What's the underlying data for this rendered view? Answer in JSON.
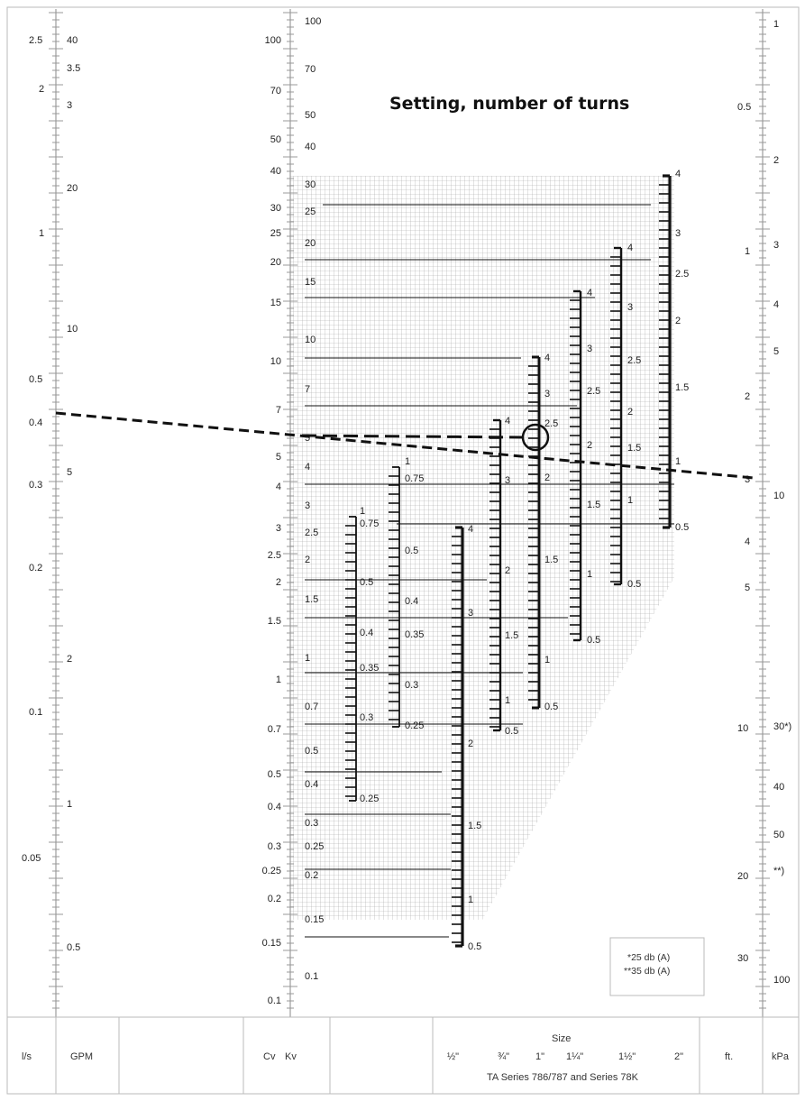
{
  "title": "Setting, number of turns",
  "scales": {
    "ls": [
      "2.5",
      "2",
      "1",
      "0.5",
      "0.4",
      "0.3",
      "0.2",
      "0.1",
      "0.05"
    ],
    "gpm": [
      "40",
      "3.5",
      "3",
      "20",
      "10",
      "5",
      "2",
      "1",
      "0.5"
    ],
    "cv": [
      "100",
      "70",
      "50",
      "40",
      "30",
      "25",
      "20",
      "15",
      "10",
      "7",
      "5",
      "4",
      "3",
      "2.5",
      "2",
      "1.5",
      "1",
      "0.7",
      "0.5",
      "0.4",
      "0.3",
      "0.25",
      "0.2",
      "0.15",
      "0.1"
    ],
    "kv": [
      "100",
      "70",
      "50",
      "40",
      "30",
      "25",
      "20",
      "15",
      "10",
      "7",
      "5",
      "4",
      "3",
      "2.5",
      "2",
      "1.5",
      "1",
      "0.7",
      "0.5",
      "0.4",
      "0.3",
      "0.25",
      "0.2",
      "0.15",
      "0.1"
    ],
    "ft": [
      "0.5",
      "1",
      "2",
      "3",
      "4",
      "5",
      "10",
      "20",
      "30"
    ],
    "kpa": [
      "1",
      "2",
      "3",
      "4",
      "5",
      "10",
      "30*)",
      "40",
      "50",
      "**)",
      "100"
    ]
  },
  "valves": [
    {
      "size": "½\"",
      "labels": [
        "1",
        "0.75",
        "0.5",
        "0.4",
        "0.35",
        "0.3",
        "0.25"
      ]
    },
    {
      "size": "¾\"",
      "labels": [
        "1",
        "0.75",
        "0.5",
        "0.4",
        "0.35",
        "0.3",
        "0.25"
      ]
    },
    {
      "size": "1\"",
      "labels": [
        "4",
        "3",
        "2",
        "1.5",
        "1",
        "0.5"
      ]
    },
    {
      "size": "1¼\"",
      "labels": [
        "4",
        "3",
        "2",
        "1.5",
        "1",
        "0.5"
      ]
    },
    {
      "size": "1½\"",
      "labels": [
        "4",
        "3",
        "2.5",
        "2",
        "1.5",
        "1",
        "0.5"
      ]
    },
    {
      "size": "2\"",
      "labels": [
        "4",
        "3",
        "2.5",
        "2",
        "1.5",
        "1",
        "0.5"
      ]
    },
    {
      "size": "",
      "labels": [
        "4",
        "3",
        "2.5",
        "2",
        "1.5",
        "1",
        "0.5"
      ]
    },
    {
      "size": "",
      "labels": [
        "4",
        "3",
        "2.5",
        "2",
        "1.5",
        "1",
        "0.5"
      ]
    }
  ],
  "note": {
    "line1": "*25 db (A)",
    "line2": "**35 db (A)"
  },
  "footer": {
    "ls": "l/s",
    "gpm": "GPM",
    "cv": "Cv",
    "kv": "Kv",
    "size": "Size",
    "sizes": [
      "½\"",
      "¾\"",
      "1\"",
      "1¼\"",
      "1½\"",
      "2\""
    ],
    "series": "TA Series 786/787 and Series 78K",
    "ft": "ft.",
    "kpa": "kPa"
  }
}
